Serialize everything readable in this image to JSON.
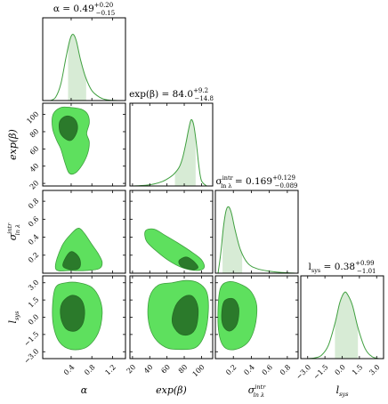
{
  "chart_data": {
    "type": "corner",
    "parameters": [
      {
        "key": "alpha",
        "symbol": "α",
        "axis_label": "α",
        "title": "α = 0.49",
        "title_sup": "+0.20",
        "title_sub": "−0.15",
        "median": 0.49,
        "err_plus": 0.2,
        "err_minus": 0.15,
        "range": [
          -0.15,
          1.45
        ],
        "ticks": [
          0.4,
          0.8,
          1.2
        ],
        "tick_labels": [
          "0.4",
          "0.8",
          "1.2"
        ]
      },
      {
        "key": "exp_beta",
        "symbol": "exp(β)",
        "axis_label": "exp(β)",
        "title": "exp(β) = 84.0",
        "title_sup": "+9.2",
        "title_sub": "−14.8",
        "median": 84.0,
        "err_plus": 9.2,
        "err_minus": 14.8,
        "range": [
          17,
          113
        ],
        "ticks": [
          20,
          40,
          60,
          80,
          100
        ],
        "tick_labels": [
          "20",
          "40",
          "60",
          "80",
          "100"
        ]
      },
      {
        "key": "sigma_intr",
        "symbol": "σ intr ln λ",
        "axis_label": "σ",
        "axis_label_sup": "intr",
        "axis_label_sub": "ln λ",
        "title": "σ",
        "title_mid_sup": "intr",
        "title_mid_sub": "ln λ",
        "title_value": " = 0.169",
        "title_sup": "+0.129",
        "title_sub": "−0.089",
        "median": 0.169,
        "err_plus": 0.129,
        "err_minus": 0.089,
        "range": [
          0.0,
          0.92
        ],
        "ticks": [
          0.2,
          0.4,
          0.6,
          0.8
        ],
        "tick_labels": [
          "0.2",
          "0.4",
          "0.6",
          "0.8"
        ]
      },
      {
        "key": "l_sys",
        "symbol": "l sys",
        "axis_label": "l",
        "axis_label_sub": "sys",
        "title": "l",
        "title_mid_sub": "sys",
        "title_value": " = 0.38",
        "title_sup": "+0.99",
        "title_sub": "−1.01",
        "median": 0.38,
        "err_plus": 0.99,
        "err_minus": 1.01,
        "range": [
          -3.6,
          3.6
        ],
        "ticks": [
          -3.0,
          -1.5,
          0.0,
          1.5,
          3.0
        ],
        "tick_labels": [
          "−3.0",
          "−1.5",
          "0.0",
          "1.5",
          "3.0"
        ]
      }
    ],
    "marginals": [
      {
        "param": "alpha",
        "x": [
          0.0,
          0.1,
          0.2,
          0.3,
          0.38,
          0.44,
          0.5,
          0.58,
          0.68,
          0.8,
          0.95,
          1.1,
          1.3
        ],
        "y": [
          0.0,
          0.05,
          0.25,
          0.65,
          0.93,
          1.0,
          0.9,
          0.62,
          0.35,
          0.15,
          0.05,
          0.01,
          0.0
        ]
      },
      {
        "param": "exp_beta",
        "x": [
          20,
          35,
          45,
          55,
          62,
          68,
          74,
          78,
          82,
          85,
          88,
          91,
          94,
          97,
          100,
          106
        ],
        "y": [
          0.0,
          0.01,
          0.03,
          0.07,
          0.12,
          0.18,
          0.28,
          0.42,
          0.65,
          0.85,
          1.0,
          0.92,
          0.65,
          0.3,
          0.08,
          0.0
        ]
      },
      {
        "param": "sigma_intr",
        "x": [
          0.03,
          0.06,
          0.09,
          0.12,
          0.15,
          0.18,
          0.22,
          0.28,
          0.36,
          0.46,
          0.6,
          0.75,
          0.9
        ],
        "y": [
          0.0,
          0.3,
          0.7,
          0.95,
          1.0,
          0.9,
          0.65,
          0.35,
          0.15,
          0.07,
          0.03,
          0.01,
          0.0
        ]
      },
      {
        "param": "l_sys",
        "x": [
          -3.0,
          -2.4,
          -1.8,
          -1.2,
          -0.6,
          -0.2,
          0.2,
          0.5,
          0.9,
          1.4,
          2.0,
          2.6,
          3.2
        ],
        "y": [
          0.0,
          0.01,
          0.05,
          0.2,
          0.55,
          0.85,
          1.0,
          0.96,
          0.8,
          0.45,
          0.15,
          0.03,
          0.0
        ]
      }
    ],
    "credible_intervals": [
      {
        "param": "alpha",
        "low": 0.34,
        "high": 0.69
      },
      {
        "param": "exp_beta",
        "low": 69.2,
        "high": 93.2
      },
      {
        "param": "sigma_intr",
        "low": 0.08,
        "high": 0.298
      },
      {
        "param": "l_sys",
        "low": -0.63,
        "high": 1.37
      }
    ],
    "contours": [
      {
        "x": "alpha",
        "y": "exp_beta",
        "outer": [
          [
            0.05,
            100
          ],
          [
            0.2,
            108
          ],
          [
            0.4,
            108
          ],
          [
            0.6,
            106
          ],
          [
            0.72,
            100
          ],
          [
            0.75,
            90
          ],
          [
            0.7,
            78
          ],
          [
            0.75,
            68
          ],
          [
            0.72,
            55
          ],
          [
            0.62,
            42
          ],
          [
            0.48,
            32
          ],
          [
            0.36,
            32
          ],
          [
            0.28,
            44
          ],
          [
            0.2,
            60
          ],
          [
            0.12,
            70
          ],
          [
            0.04,
            84
          ]
        ],
        "inner": [
          [
            0.18,
            92
          ],
          [
            0.3,
            98
          ],
          [
            0.44,
            96
          ],
          [
            0.52,
            88
          ],
          [
            0.5,
            78
          ],
          [
            0.4,
            70
          ],
          [
            0.28,
            72
          ],
          [
            0.18,
            80
          ]
        ]
      },
      {
        "x": "alpha",
        "y": "sigma_intr",
        "outer": [
          [
            0.1,
            0.05
          ],
          [
            0.22,
            0.3
          ],
          [
            0.42,
            0.45
          ],
          [
            0.55,
            0.5
          ],
          [
            0.66,
            0.44
          ],
          [
            0.8,
            0.32
          ],
          [
            0.92,
            0.22
          ],
          [
            1.0,
            0.12
          ],
          [
            0.94,
            0.05
          ],
          [
            0.7,
            0.03
          ],
          [
            0.4,
            0.03
          ]
        ],
        "inner": [
          [
            0.24,
            0.08
          ],
          [
            0.3,
            0.18
          ],
          [
            0.4,
            0.24
          ],
          [
            0.52,
            0.2
          ],
          [
            0.58,
            0.12
          ],
          [
            0.54,
            0.05
          ],
          [
            0.38,
            0.04
          ]
        ]
      },
      {
        "x": "alpha",
        "y": "l_sys",
        "outer": [
          [
            0.1,
            2.6
          ],
          [
            0.3,
            3.0
          ],
          [
            0.55,
            3.0
          ],
          [
            0.8,
            2.6
          ],
          [
            0.95,
            1.6
          ],
          [
            1.0,
            0.3
          ],
          [
            0.92,
            -1.4
          ],
          [
            0.7,
            -2.6
          ],
          [
            0.4,
            -2.8
          ],
          [
            0.18,
            -2.2
          ],
          [
            0.06,
            -0.8
          ],
          [
            0.04,
            1.0
          ]
        ],
        "inner": [
          [
            0.22,
            1.2
          ],
          [
            0.4,
            1.9
          ],
          [
            0.58,
            1.6
          ],
          [
            0.66,
            0.6
          ],
          [
            0.62,
            -0.6
          ],
          [
            0.48,
            -1.2
          ],
          [
            0.3,
            -1.0
          ],
          [
            0.2,
            0.0
          ]
        ]
      },
      {
        "x": "exp_beta",
        "y": "sigma_intr",
        "outer": [
          [
            35,
            0.47
          ],
          [
            45,
            0.49
          ],
          [
            58,
            0.42
          ],
          [
            72,
            0.34
          ],
          [
            88,
            0.24
          ],
          [
            100,
            0.15
          ],
          [
            103,
            0.06
          ],
          [
            94,
            0.03
          ],
          [
            78,
            0.06
          ],
          [
            62,
            0.14
          ],
          [
            46,
            0.26
          ],
          [
            36,
            0.36
          ]
        ],
        "inner": [
          [
            74,
            0.14
          ],
          [
            82,
            0.18
          ],
          [
            90,
            0.14
          ],
          [
            96,
            0.07
          ],
          [
            92,
            0.04
          ],
          [
            84,
            0.05
          ],
          [
            76,
            0.08
          ]
        ]
      },
      {
        "x": "exp_beta",
        "y": "l_sys",
        "outer": [
          [
            40,
            1.8
          ],
          [
            50,
            2.8
          ],
          [
            66,
            3.0
          ],
          [
            82,
            3.2
          ],
          [
            96,
            3.0
          ],
          [
            106,
            2.2
          ],
          [
            108,
            0.6
          ],
          [
            104,
            -1.4
          ],
          [
            94,
            -2.6
          ],
          [
            76,
            -2.8
          ],
          [
            58,
            -2.6
          ],
          [
            44,
            -1.6
          ],
          [
            38,
            0.0
          ]
        ],
        "inner": [
          [
            66,
            -0.4
          ],
          [
            70,
            1.0
          ],
          [
            80,
            1.8
          ],
          [
            90,
            1.8
          ],
          [
            96,
            0.8
          ],
          [
            94,
            -0.8
          ],
          [
            86,
            -1.5
          ],
          [
            74,
            -1.4
          ]
        ]
      },
      {
        "x": "sigma_intr",
        "y": "l_sys",
        "outer": [
          [
            0.03,
            0.8
          ],
          [
            0.06,
            2.6
          ],
          [
            0.16,
            3.1
          ],
          [
            0.3,
            2.8
          ],
          [
            0.4,
            2.2
          ],
          [
            0.46,
            1.0
          ],
          [
            0.44,
            -0.8
          ],
          [
            0.36,
            -2.2
          ],
          [
            0.22,
            -2.8
          ],
          [
            0.1,
            -2.6
          ],
          [
            0.04,
            -1.4
          ]
        ],
        "inner": [
          [
            0.07,
            0.2
          ],
          [
            0.1,
            1.4
          ],
          [
            0.2,
            1.6
          ],
          [
            0.26,
            0.8
          ],
          [
            0.24,
            -0.6
          ],
          [
            0.16,
            -1.2
          ],
          [
            0.09,
            -0.8
          ]
        ]
      }
    ],
    "colors": {
      "line": "#3f9f3f",
      "outer_fill": "#5ee05e",
      "inner_fill": "#2b7a2b",
      "interval_fill": "#d7ebd5",
      "outer_stroke": "#3f9f3f"
    }
  }
}
